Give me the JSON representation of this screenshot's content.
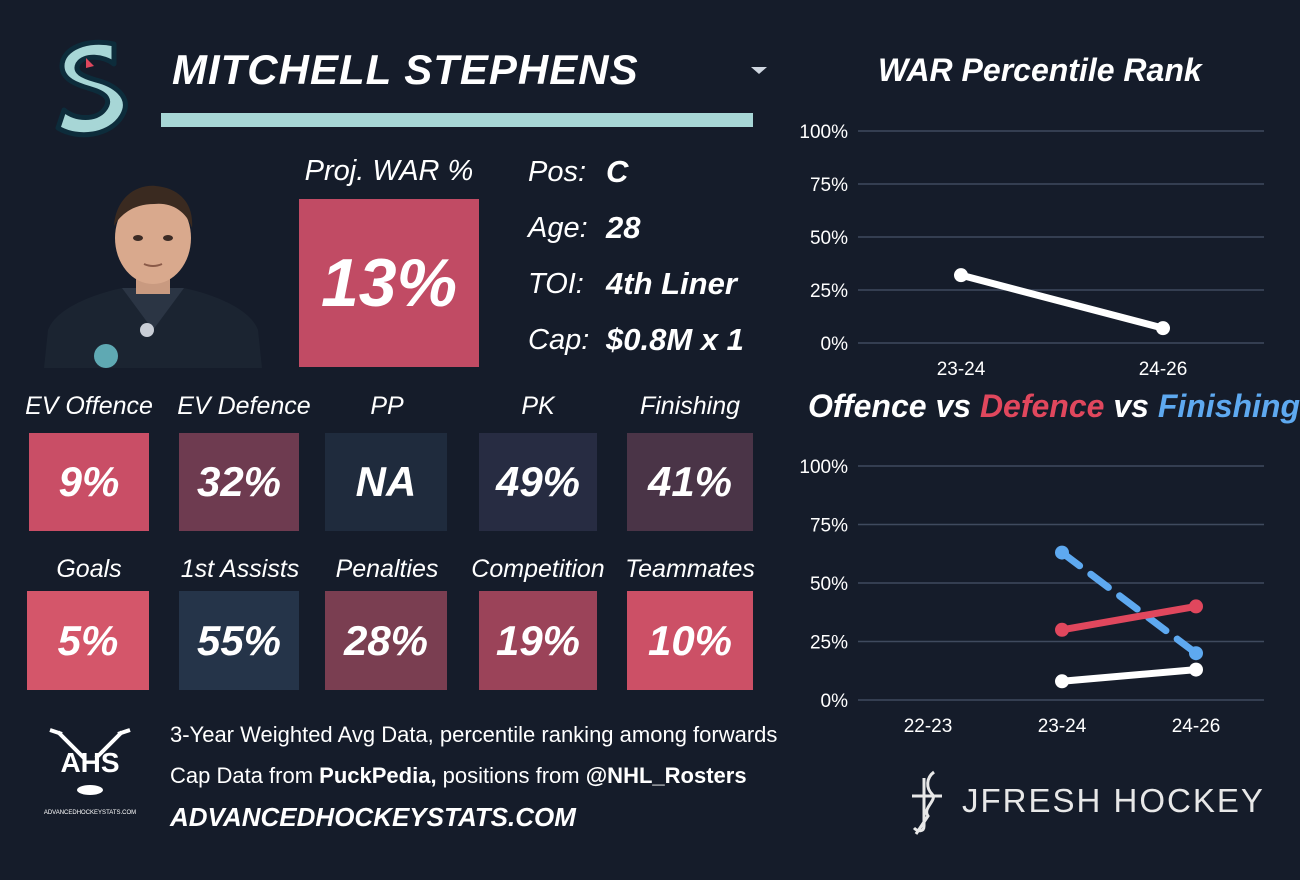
{
  "header": {
    "player_name": "MITCHELL STEPHENS",
    "team_logo": "kraken-logo",
    "dropdown_icon": "chevron-down-icon",
    "bar_color": "#a7d6d6"
  },
  "projection": {
    "label": "Proj. WAR %",
    "value": "13%",
    "color": "#c14b64"
  },
  "info": [
    {
      "label": "Pos:",
      "value": "C"
    },
    {
      "label": "Age:",
      "value": "28"
    },
    {
      "label": "TOI:",
      "value": "4th Liner"
    },
    {
      "label": "Cap:",
      "value": "$0.8M x 1"
    }
  ],
  "metrics_row1": [
    {
      "label": "EV Offence",
      "value": "9%",
      "color": "#c94e66"
    },
    {
      "label": "EV Defence",
      "value": "32%",
      "color": "#6e3b50"
    },
    {
      "label": "PP",
      "value": "NA",
      "color": "#1f2b3d"
    },
    {
      "label": "PK",
      "value": "49%",
      "color": "#272c42"
    },
    {
      "label": "Finishing",
      "value": "41%",
      "color": "#4a3447"
    }
  ],
  "metrics_row2": [
    {
      "label": "Goals",
      "value": "5%",
      "color": "#d4566a"
    },
    {
      "label": "1st Assists",
      "value": "55%",
      "color": "#253449"
    },
    {
      "label": "Penalties",
      "value": "28%",
      "color": "#7a3e51"
    },
    {
      "label": "Competition",
      "value": "19%",
      "color": "#9b4359"
    },
    {
      "label": "Teammates",
      "value": "10%",
      "color": "#cc5066"
    }
  ],
  "footer": {
    "line1": "3-Year Weighted Avg Data, percentile ranking among forwards",
    "line2_prefix": "Cap Data from ",
    "line2_source1": "PuckPedia,",
    "line2_mid": " positions from ",
    "line2_source2": "@NHL_Rosters",
    "url": "ADVANCEDHOCKEYSTATS.COM",
    "ahs_logo_text": "AHS",
    "ahs_logo_subtext": "ADVANCEDHOCKEYSTATS.COM",
    "brand": "JFRESH HOCKEY"
  },
  "chart_data": [
    {
      "type": "line",
      "title": "WAR Percentile Rank",
      "x": [
        "23-24",
        "24-26"
      ],
      "y_ticks": [
        "100%",
        "75%",
        "50%",
        "25%",
        "0%"
      ],
      "ylim": [
        0,
        100
      ],
      "grid": true,
      "series": [
        {
          "values": [
            32,
            7
          ],
          "color": "#ffffff",
          "dashed": false
        }
      ]
    },
    {
      "type": "line",
      "title_parts": [
        {
          "text": "Offence",
          "color": "#ffffff"
        },
        {
          "text": " vs ",
          "color": "#ffffff"
        },
        {
          "text": "Defence",
          "color": "#e0475d"
        },
        {
          "text": " vs ",
          "color": "#ffffff"
        },
        {
          "text": "Finishing",
          "color": "#5ea9f0"
        }
      ],
      "x": [
        "22-23",
        "23-24",
        "24-26"
      ],
      "y_ticks": [
        "100%",
        "75%",
        "50%",
        "25%",
        "0%"
      ],
      "ylim": [
        0,
        100
      ],
      "grid": true,
      "series": [
        {
          "values": [
            null,
            63,
            20
          ],
          "color": "#5ea9f0",
          "dashed": true
        },
        {
          "values": [
            null,
            30,
            40
          ],
          "color": "#e0475d",
          "dashed": false
        },
        {
          "values": [
            null,
            8,
            13
          ],
          "color": "#ffffff",
          "dashed": false
        }
      ]
    }
  ]
}
